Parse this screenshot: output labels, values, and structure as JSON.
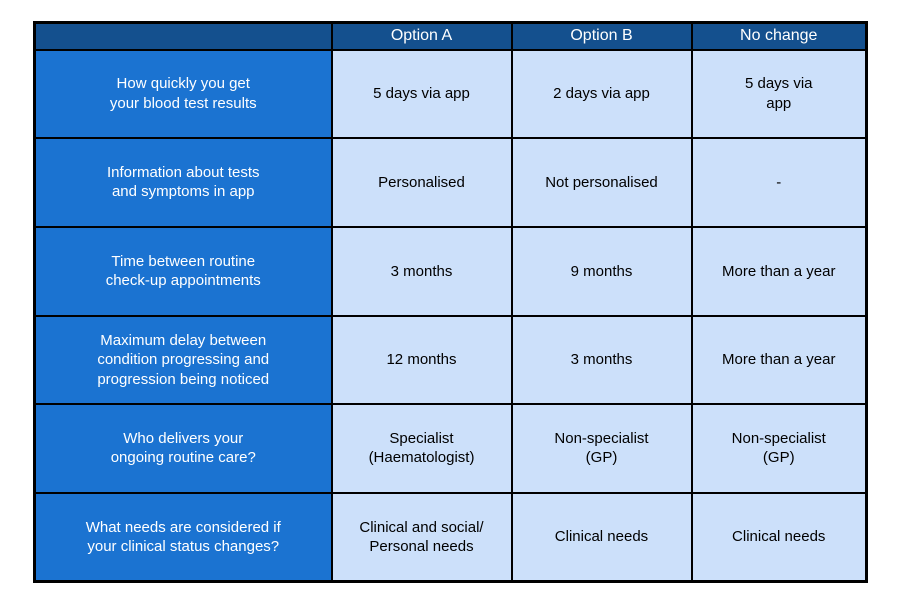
{
  "chart_data": {
    "type": "table",
    "title": "",
    "columns": [
      "",
      "Option A",
      "Option B",
      "No change"
    ],
    "rows": [
      {
        "label": "How quickly you get\nyour blood test results",
        "values": [
          "5 days via app",
          "2 days via app",
          "5 days via\napp"
        ]
      },
      {
        "label": "Information about tests\nand symptoms in app",
        "values": [
          "Personalised",
          "Not personalised",
          "-"
        ]
      },
      {
        "label": "Time between routine\ncheck-up appointments",
        "values": [
          "3 months",
          "9 months",
          "More than a year"
        ]
      },
      {
        "label": "Maximum delay between\ncondition progressing and\nprogression being noticed",
        "values": [
          "12 months",
          "3 months",
          "More than a year"
        ]
      },
      {
        "label": "Who delivers your\nongoing routine care?",
        "values": [
          "Specialist\n(Haematologist)",
          "Non-specialist\n(GP)",
          "Non-specialist\n(GP)"
        ]
      },
      {
        "label": "What needs are considered if\nyour clinical status changes?",
        "values": [
          "Clinical and social/\nPersonal needs",
          "Clinical needs",
          "Clinical needs"
        ]
      }
    ],
    "layout": {
      "grid": "black solid borders, collapsed",
      "legend": "none"
    }
  },
  "colors": {
    "header_bg": "#14508E",
    "header_text": "#FFFFFF",
    "row_label_bg": "#1B73D1",
    "row_label_text": "#FFFFFF",
    "cell_bg": "#CCE0FA",
    "cell_text": "#000000",
    "border": "#000000",
    "page_bg": "#FFFFFF"
  }
}
